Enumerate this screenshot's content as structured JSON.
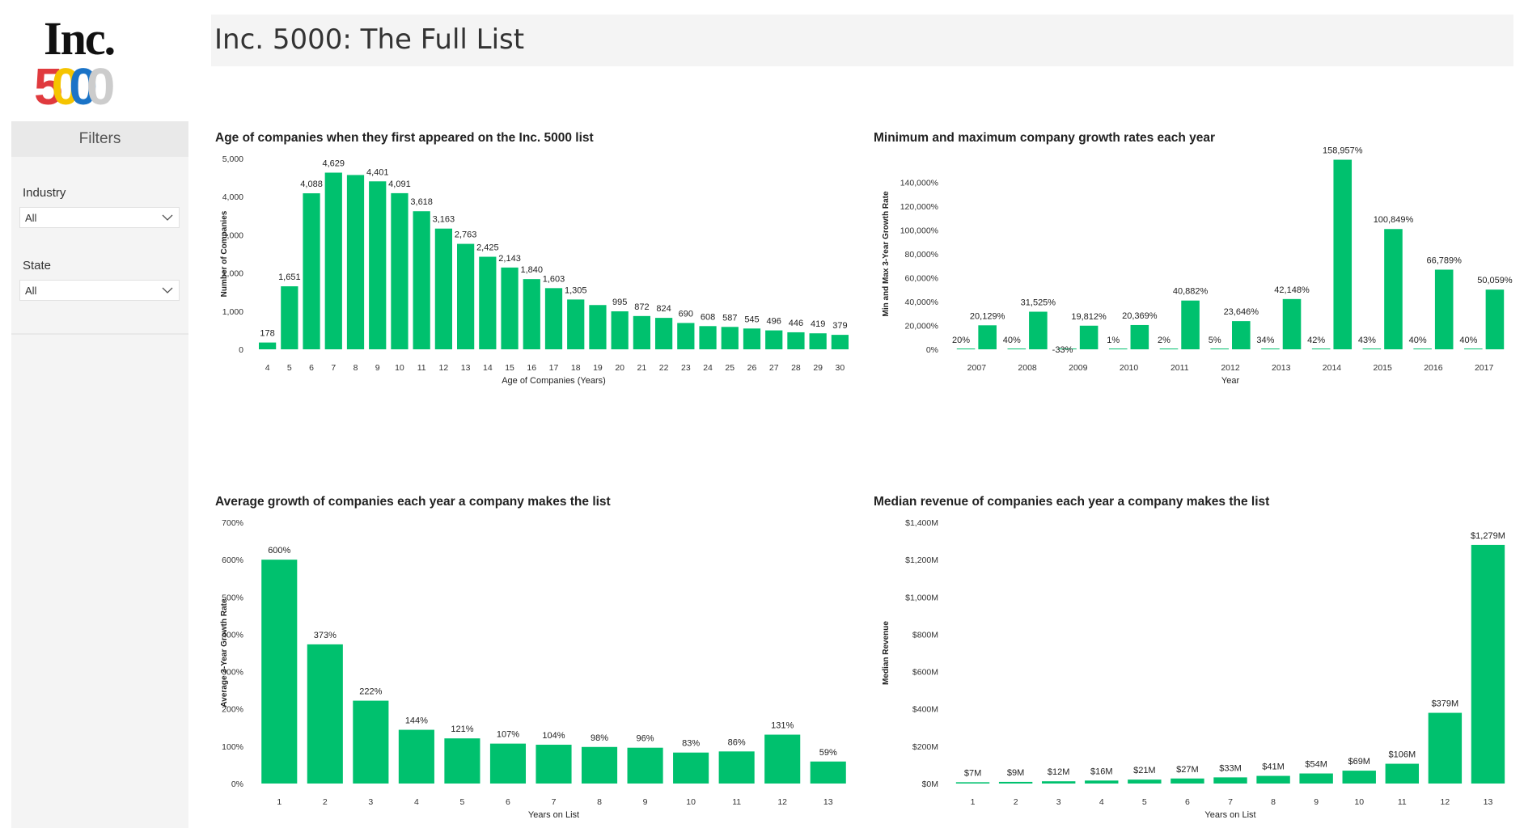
{
  "header": {
    "title": "Inc. 5000: The Full List"
  },
  "logo": {
    "wordmark": "Inc.",
    "digits": [
      "5",
      "0",
      "0",
      "0"
    ],
    "digit_colors": [
      "#e03a3e",
      "#f5c400",
      "#1a73c7",
      "#cccccc"
    ]
  },
  "sidebar": {
    "heading": "Filters",
    "filters": [
      {
        "label": "Industry",
        "value": "All"
      },
      {
        "label": "State",
        "value": "All"
      }
    ]
  },
  "colors": {
    "bar": "#00c16e",
    "text": "#222222",
    "axis_text": "#333333"
  },
  "chart_data": [
    {
      "type": "bar",
      "title": "Age of companies when they first appeared on the Inc. 5000 list",
      "xlabel": "Age of Companies (Years)",
      "ylabel": "Number of Companies",
      "categories": [
        "4",
        "5",
        "6",
        "7",
        "8",
        "9",
        "10",
        "11",
        "12",
        "13",
        "14",
        "15",
        "16",
        "17",
        "18",
        "19",
        "20",
        "21",
        "22",
        "23",
        "24",
        "25",
        "26",
        "27",
        "28",
        "29",
        "30"
      ],
      "values": [
        178,
        1651,
        4088,
        4629,
        4567,
        4401,
        4091,
        3618,
        3163,
        2763,
        2425,
        2143,
        1840,
        1603,
        1305,
        1160,
        995,
        872,
        824,
        690,
        608,
        587,
        545,
        496,
        446,
        419,
        379
      ],
      "data_labels": [
        "178",
        "1,651",
        "4,088",
        "4,629",
        "",
        "4,401",
        "4,091",
        "3,618",
        "3,163",
        "2,763",
        "2,425",
        "2,143",
        "1,840",
        "1,603",
        "1,305",
        "",
        "995",
        "872",
        "824",
        "690",
        "608",
        "587",
        "545",
        "496",
        "446",
        "419",
        "379"
      ],
      "ylim": [
        0,
        5000
      ],
      "yticks": [
        0,
        1000,
        2000,
        3000,
        4000,
        5000
      ],
      "ytick_labels": [
        "0",
        "1,000",
        "2,000",
        "3,000",
        "4,000",
        "5,000"
      ]
    },
    {
      "type": "bar",
      "title": "Minimum and maximum company growth rates each year",
      "xlabel": "Year",
      "ylabel": "Min and Max 3-Year Growth Rate",
      "categories": [
        "2007",
        "2008",
        "2009",
        "2010",
        "2011",
        "2012",
        "2013",
        "2014",
        "2015",
        "2016",
        "2017"
      ],
      "series": [
        {
          "values": [
            20,
            40,
            -33,
            1,
            2,
            5,
            34,
            42,
            43,
            40,
            40
          ],
          "data_labels": [
            "20%",
            "40%",
            "-33%",
            "1%",
            "2%",
            "5%",
            "34%",
            "42%",
            "43%",
            "40%",
            "40%"
          ]
        },
        {
          "values": [
            20129,
            31525,
            19812,
            20369,
            40882,
            23646,
            42148,
            158957,
            100849,
            66789,
            50059
          ],
          "data_labels": [
            "20,129%",
            "31,525%",
            "19,812%",
            "20,369%",
            "40,882%",
            "23,646%",
            "42,148%",
            "158,957%",
            "100,849%",
            "66,789%",
            "50,059%"
          ]
        }
      ],
      "ylim": [
        0,
        160000
      ],
      "yticks": [
        0,
        20000,
        40000,
        60000,
        80000,
        100000,
        120000,
        140000
      ],
      "ytick_labels": [
        "0%",
        "20,000%",
        "40,000%",
        "60,000%",
        "80,000%",
        "100,000%",
        "120,000%",
        "140,000%"
      ]
    },
    {
      "type": "bar",
      "title": "Average growth of companies each year a company makes the list",
      "xlabel": "Years on List",
      "ylabel": "Average 3-Year Growth Rate",
      "categories": [
        "1",
        "2",
        "3",
        "4",
        "5",
        "6",
        "7",
        "8",
        "9",
        "10",
        "11",
        "12",
        "13"
      ],
      "values": [
        600,
        373,
        222,
        144,
        121,
        107,
        104,
        98,
        96,
        83,
        86,
        131,
        59
      ],
      "data_labels": [
        "600%",
        "373%",
        "222%",
        "144%",
        "121%",
        "107%",
        "104%",
        "98%",
        "96%",
        "83%",
        "86%",
        "131%",
        "59%"
      ],
      "ylim": [
        0,
        700
      ],
      "yticks": [
        0,
        100,
        200,
        300,
        400,
        500,
        600,
        700
      ],
      "ytick_labels": [
        "0%",
        "100%",
        "200%",
        "300%",
        "400%",
        "500%",
        "600%",
        "700%"
      ]
    },
    {
      "type": "bar",
      "title": "Median revenue of companies each year a company makes the list",
      "xlabel": "Years on List",
      "ylabel": "Median Revenue",
      "categories": [
        "1",
        "2",
        "3",
        "4",
        "5",
        "6",
        "7",
        "8",
        "9",
        "10",
        "11",
        "12",
        "13"
      ],
      "values": [
        7,
        9,
        12,
        16,
        21,
        27,
        33,
        41,
        54,
        69,
        106,
        379,
        1279
      ],
      "data_labels": [
        "$7M",
        "$9M",
        "$12M",
        "$16M",
        "$21M",
        "$27M",
        "$33M",
        "$41M",
        "$54M",
        "$69M",
        "$106M",
        "$379M",
        "$1,279M"
      ],
      "ylim": [
        0,
        1400
      ],
      "yticks": [
        0,
        200,
        400,
        600,
        800,
        1000,
        1200,
        1400
      ],
      "ytick_labels": [
        "$0M",
        "$200M",
        "$400M",
        "$600M",
        "$800M",
        "$1,000M",
        "$1,200M",
        "$1,400M"
      ]
    }
  ]
}
